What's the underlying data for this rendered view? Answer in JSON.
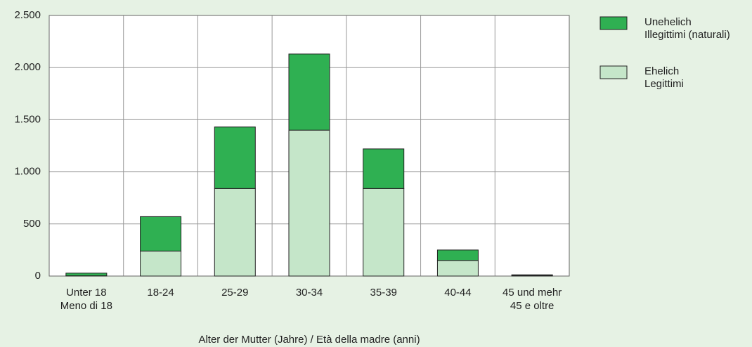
{
  "chart_data": {
    "type": "stacked_bar",
    "x_label": "Alter der Mutter (Jahre) / Età della madre (anni)",
    "categories": [
      [
        "Unter 18",
        "Meno di 18"
      ],
      [
        "18-24"
      ],
      [
        "25-29"
      ],
      [
        "30-34"
      ],
      [
        "35-39"
      ],
      [
        "40-44"
      ],
      [
        "45 und mehr",
        "45 e oltre"
      ]
    ],
    "series": [
      {
        "name": [
          "Ehelich",
          "Legittimi"
        ],
        "color": "#c5e6c9",
        "values": [
          3,
          240,
          840,
          1400,
          840,
          150,
          5
        ]
      },
      {
        "name": [
          "Unehelich",
          "Illegittimi (naturali)"
        ],
        "color": "#2fb052",
        "values": [
          25,
          330,
          590,
          730,
          380,
          100,
          7
        ]
      }
    ],
    "ylim": [
      0,
      2500
    ],
    "yticks": [
      0,
      500,
      {
        "value": 1000,
        "label": "1.000"
      },
      {
        "value": 1500,
        "label": "1.500"
      },
      {
        "value": 2000,
        "label": "2.000"
      },
      {
        "value": 2500,
        "label": "2.500"
      }
    ],
    "grid": true,
    "legend": "right"
  }
}
